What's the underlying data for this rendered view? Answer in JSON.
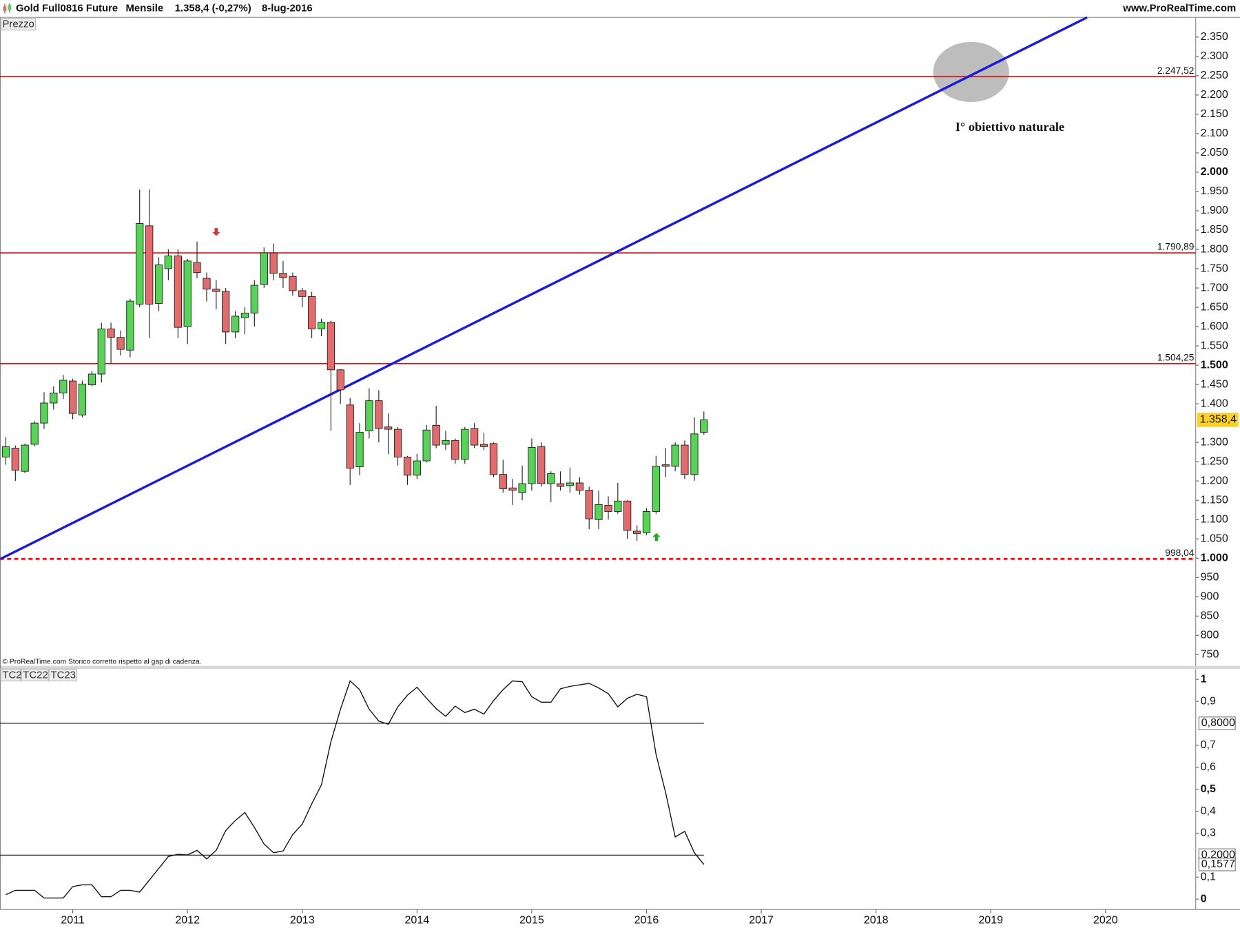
{
  "header": {
    "instrument": "Gold Full0816 Future",
    "period": "Mensile",
    "quote": "1.358,4 (-0,27%)",
    "date": "8-lug-2016",
    "site": "www.ProRealTime.com"
  },
  "chart_data": [
    {
      "type": "candlestick",
      "panel_label": "Prezzo",
      "footnote": "© ProRealTime.com  Storico corretto rispetto al gap di cadenza.",
      "annotation": "I° obiettivo naturale",
      "x": [
        2010.417,
        2010.5,
        2010.583,
        2010.667,
        2010.75,
        2010.833,
        2010.917,
        2011,
        2011.083,
        2011.167,
        2011.25,
        2011.333,
        2011.417,
        2011.5,
        2011.583,
        2011.667,
        2011.75,
        2011.833,
        2011.917,
        2012,
        2012.083,
        2012.167,
        2012.25,
        2012.333,
        2012.417,
        2012.5,
        2012.583,
        2012.667,
        2012.75,
        2012.833,
        2012.917,
        2013,
        2013.083,
        2013.167,
        2013.25,
        2013.333,
        2013.417,
        2013.5,
        2013.583,
        2013.667,
        2013.75,
        2013.833,
        2013.917,
        2014,
        2014.083,
        2014.167,
        2014.25,
        2014.333,
        2014.417,
        2014.5,
        2014.583,
        2014.667,
        2014.75,
        2014.833,
        2014.917,
        2015,
        2015.083,
        2015.167,
        2015.25,
        2015.333,
        2015.417,
        2015.5,
        2015.583,
        2015.667,
        2015.75,
        2015.833,
        2015.917,
        2016,
        2016.083,
        2016.167,
        2016.25,
        2016.333,
        2016.417,
        2016.5
      ],
      "open": [
        1262,
        1285,
        1225,
        1295,
        1350,
        1402,
        1428,
        1459,
        1371,
        1449,
        1477,
        1594,
        1572,
        1539,
        1658,
        1861,
        1660,
        1750,
        1783,
        1600,
        1766,
        1725,
        1697,
        1691,
        1586,
        1623,
        1635,
        1709,
        1791,
        1738,
        1730,
        1693,
        1678,
        1594,
        1611,
        1488,
        1397,
        1237,
        1330,
        1408,
        1340,
        1334,
        1262,
        1215,
        1252,
        1344,
        1295,
        1305,
        1256,
        1336,
        1295,
        1297,
        1217,
        1182,
        1170,
        1193,
        1289,
        1193,
        1193,
        1188,
        1195,
        1176,
        1100,
        1137,
        1121,
        1148,
        1070,
        1066,
        1121,
        1242,
        1238,
        1293,
        1217,
        1326
      ],
      "high": [
        1313,
        1292,
        1297,
        1355,
        1430,
        1445,
        1475,
        1465,
        1460,
        1485,
        1610,
        1610,
        1590,
        1672,
        1955,
        1955,
        1780,
        1800,
        1800,
        1775,
        1820,
        1740,
        1720,
        1700,
        1640,
        1650,
        1720,
        1805,
        1815,
        1770,
        1740,
        1700,
        1690,
        1620,
        1615,
        1490,
        1415,
        1350,
        1440,
        1435,
        1375,
        1340,
        1265,
        1270,
        1345,
        1395,
        1330,
        1310,
        1340,
        1350,
        1325,
        1300,
        1255,
        1205,
        1240,
        1310,
        1300,
        1225,
        1225,
        1235,
        1210,
        1185,
        1175,
        1160,
        1195,
        1150,
        1085,
        1130,
        1265,
        1285,
        1300,
        1305,
        1365,
        1380
      ],
      "low": [
        1242,
        1200,
        1220,
        1290,
        1335,
        1385,
        1412,
        1360,
        1365,
        1445,
        1455,
        1504,
        1525,
        1520,
        1650,
        1570,
        1640,
        1720,
        1570,
        1555,
        1725,
        1665,
        1645,
        1555,
        1570,
        1580,
        1600,
        1700,
        1720,
        1700,
        1680,
        1650,
        1570,
        1575,
        1330,
        1400,
        1190,
        1215,
        1310,
        1300,
        1270,
        1240,
        1190,
        1205,
        1248,
        1285,
        1280,
        1245,
        1245,
        1285,
        1280,
        1210,
        1170,
        1138,
        1150,
        1175,
        1185,
        1145,
        1175,
        1170,
        1165,
        1075,
        1075,
        1100,
        1115,
        1050,
        1045,
        1060,
        1115,
        1210,
        1225,
        1205,
        1200,
        1320
      ],
      "close": [
        1289,
        1228,
        1293,
        1350,
        1402,
        1428,
        1461,
        1375,
        1451,
        1477,
        1594,
        1572,
        1541,
        1666,
        1867,
        1658,
        1760,
        1783,
        1598,
        1770,
        1740,
        1697,
        1691,
        1586,
        1627,
        1635,
        1707,
        1791,
        1738,
        1727,
        1693,
        1678,
        1594,
        1611,
        1488,
        1436,
        1233,
        1326,
        1408,
        1336,
        1334,
        1262,
        1215,
        1252,
        1332,
        1293,
        1305,
        1256,
        1334,
        1293,
        1289,
        1217,
        1180,
        1176,
        1193,
        1287,
        1193,
        1219,
        1186,
        1195,
        1176,
        1102,
        1139,
        1121,
        1148,
        1072,
        1064,
        1121,
        1238,
        1238,
        1293,
        1217,
        1322,
        1358.4
      ],
      "up_color": "#55d455",
      "down_color": "#e46b6b",
      "xlim": [
        2010.366,
        2020.786
      ],
      "xticks": [
        2011,
        2012,
        2013,
        2014,
        2015,
        2016,
        2017,
        2018,
        2019,
        2020
      ],
      "ylim": [
        721,
        2401
      ],
      "yticks": [
        750,
        800,
        850,
        900,
        950,
        {
          "value": 1000,
          "label": "1.000"
        },
        {
          "value": 1050,
          "label": "1.050"
        },
        {
          "value": 1100,
          "label": "1.100"
        },
        {
          "value": 1150,
          "label": "1.150"
        },
        {
          "value": 1200,
          "label": "1.200"
        },
        {
          "value": 1250,
          "label": "1.250"
        },
        {
          "value": 1300,
          "label": "1.300"
        },
        {
          "value": 1400,
          "label": "1.400"
        },
        {
          "value": 1450,
          "label": "1.450"
        },
        {
          "value": 1500,
          "label": "1.500"
        },
        {
          "value": 1550,
          "label": "1.550"
        },
        {
          "value": 1600,
          "label": "1.600"
        },
        {
          "value": 1650,
          "label": "1.650"
        },
        {
          "value": 1700,
          "label": "1.700"
        },
        {
          "value": 1750,
          "label": "1.750"
        },
        {
          "value": 1800,
          "label": "1.800"
        },
        {
          "value": 1850,
          "label": "1.850"
        },
        {
          "value": 1900,
          "label": "1.900"
        },
        {
          "value": 1950,
          "label": "1.950"
        },
        {
          "value": 2000,
          "label": "2.000"
        },
        {
          "value": 2050,
          "label": "2.050"
        },
        {
          "value": 2100,
          "label": "2.100"
        },
        {
          "value": 2150,
          "label": "2.150"
        },
        {
          "value": 2200,
          "label": "2.200"
        },
        {
          "value": 2250,
          "label": "2.250"
        },
        {
          "value": 2300,
          "label": "2.300"
        },
        {
          "value": 2350,
          "label": "2.350"
        }
      ],
      "levels": [
        {
          "value": 2247.52,
          "label": "2.247,52",
          "color": "#dd1111",
          "dashed": false
        },
        {
          "value": 1790.89,
          "label": "1.790,89",
          "color": "#dd1111",
          "dashed": false
        },
        {
          "value": 1504.25,
          "label": "1.504,25",
          "color": "#dd1111",
          "dashed": false
        },
        {
          "value": 998.04,
          "label": "998,04",
          "color": "#ee1111",
          "dashed": true
        }
      ],
      "last_price": {
        "value": 1358.4,
        "label": "1.358,4",
        "color": "#ffd21f"
      },
      "trendline": {
        "x": [
          2010.37,
          2019.84
        ],
        "y": [
          998,
          2401
        ],
        "color": "#1a1add"
      },
      "signals": [
        {
          "x": 2012.25,
          "y": 1845,
          "direction": "down",
          "color": "#dd3333"
        },
        {
          "x": 2016.086,
          "y": 1055,
          "direction": "up",
          "color": "#22aa22"
        }
      ]
    },
    {
      "type": "line",
      "panel_labels": [
        "TC2",
        "TC22",
        "TC23"
      ],
      "x": [
        2010.417,
        2010.5,
        2010.583,
        2010.667,
        2010.75,
        2010.833,
        2010.917,
        2011,
        2011.083,
        2011.167,
        2011.25,
        2011.333,
        2011.417,
        2011.5,
        2011.583,
        2011.667,
        2011.75,
        2011.833,
        2011.917,
        2012,
        2012.083,
        2012.167,
        2012.25,
        2012.333,
        2012.417,
        2012.5,
        2012.583,
        2012.667,
        2012.75,
        2012.833,
        2012.917,
        2013,
        2013.083,
        2013.167,
        2013.25,
        2013.333,
        2013.417,
        2013.5,
        2013.583,
        2013.667,
        2013.75,
        2013.833,
        2013.917,
        2014,
        2014.083,
        2014.167,
        2014.25,
        2014.333,
        2014.417,
        2014.5,
        2014.583,
        2014.667,
        2014.75,
        2014.833,
        2014.917,
        2015,
        2015.083,
        2015.167,
        2015.25,
        2015.333,
        2015.417,
        2015.5,
        2015.583,
        2015.667,
        2015.75,
        2015.833,
        2015.917,
        2016,
        2016.083,
        2016.167,
        2016.25,
        2016.333,
        2016.417,
        2016.5
      ],
      "values": [
        0.02,
        0.04,
        0.04,
        0.04,
        0.005,
        0.005,
        0.005,
        0.057,
        0.065,
        0.065,
        0.011,
        0.011,
        0.04,
        0.04,
        0.032,
        0.086,
        0.14,
        0.194,
        0.204,
        0.201,
        0.222,
        0.183,
        0.222,
        0.312,
        0.358,
        0.394,
        0.326,
        0.251,
        0.211,
        0.219,
        0.294,
        0.341,
        0.434,
        0.52,
        0.717,
        0.864,
        0.993,
        0.953,
        0.864,
        0.81,
        0.796,
        0.875,
        0.928,
        0.964,
        0.914,
        0.867,
        0.832,
        0.878,
        0.849,
        0.864,
        0.842,
        0.903,
        0.953,
        0.993,
        0.989,
        0.921,
        0.896,
        0.896,
        0.957,
        0.968,
        0.975,
        0.982,
        0.961,
        0.935,
        0.875,
        0.914,
        0.932,
        0.921,
        0.659,
        0.484,
        0.283,
        0.308,
        0.211,
        0.1577
      ],
      "color": "#111111",
      "xlim": [
        2010.366,
        2020.786
      ],
      "ylim": [
        -0.047,
        1.047
      ],
      "yticks": [
        0,
        {
          "value": 0.1,
          "label": "0,1"
        },
        {
          "value": 0.3,
          "label": "0,3"
        },
        {
          "value": 0.4,
          "label": "0,4"
        },
        {
          "value": 0.5,
          "label": "0,5"
        },
        {
          "value": 0.6,
          "label": "0,6"
        },
        {
          "value": 0.7,
          "label": "0,7"
        },
        {
          "value": 0.9,
          "label": "0,9"
        },
        1
      ],
      "levels": [
        {
          "value": 0.8,
          "label": "0,8000"
        },
        {
          "value": 0.2,
          "label": "0,2000"
        }
      ],
      "last_value": {
        "value": 0.1577,
        "label": "0,1577"
      }
    }
  ]
}
